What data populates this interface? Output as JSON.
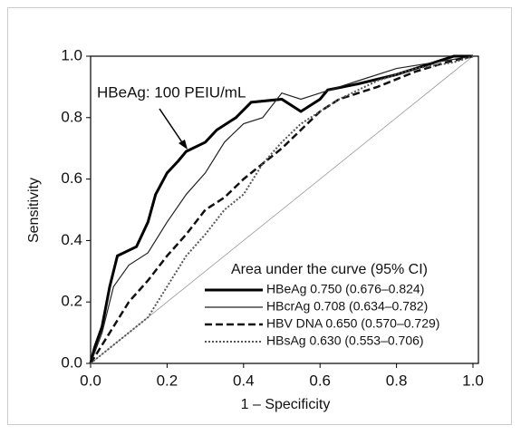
{
  "chart_data": {
    "type": "line",
    "xlabel": "1 – Specificity",
    "ylabel": "Sensitivity",
    "annotation": "HBeAg: 100 PEIU/mL",
    "legend_title": "Area under the curve (95% CI)",
    "xlim": [
      0,
      1
    ],
    "ylim": [
      0,
      1
    ],
    "xticks": [
      {
        "value": 0,
        "label": "0.0"
      },
      0.2,
      0.4,
      0.6,
      0.8,
      {
        "value": 1,
        "label": "1.0"
      }
    ],
    "yticks": [
      {
        "value": 0,
        "label": "0.0"
      },
      0.2,
      0.4,
      0.6,
      0.8,
      {
        "value": 1,
        "label": "1.0"
      }
    ],
    "series": [
      {
        "name": "HBeAg 0.750 (0.676–0.824)",
        "color": "#000000",
        "style": "solid",
        "width": 3,
        "x": [
          0,
          0.01,
          0.03,
          0.05,
          0.07,
          0.12,
          0.15,
          0.17,
          0.2,
          0.23,
          0.25,
          0.3,
          0.33,
          0.38,
          0.42,
          0.5,
          0.55,
          0.6,
          0.62,
          0.7,
          0.8,
          0.9,
          0.95,
          1
        ],
        "values": [
          0,
          0.05,
          0.12,
          0.25,
          0.35,
          0.38,
          0.46,
          0.55,
          0.62,
          0.66,
          0.69,
          0.72,
          0.76,
          0.8,
          0.85,
          0.86,
          0.82,
          0.86,
          0.89,
          0.91,
          0.94,
          0.98,
          1,
          1
        ]
      },
      {
        "name": "HBcrAg 0.708 (0.634–0.782)",
        "color": "#222222",
        "style": "solid",
        "width": 1.2,
        "x": [
          0,
          0.03,
          0.06,
          0.1,
          0.15,
          0.2,
          0.25,
          0.3,
          0.35,
          0.4,
          0.45,
          0.5,
          0.55,
          0.6,
          0.7,
          0.8,
          0.9,
          1
        ],
        "values": [
          0,
          0.1,
          0.25,
          0.32,
          0.36,
          0.46,
          0.55,
          0.62,
          0.72,
          0.78,
          0.8,
          0.88,
          0.86,
          0.88,
          0.92,
          0.96,
          0.98,
          1
        ]
      },
      {
        "name": "HBV DNA 0.650 (0.570–0.729)",
        "color": "#111111",
        "style": "dashed",
        "width": 2.5,
        "x": [
          0,
          0.05,
          0.1,
          0.15,
          0.2,
          0.25,
          0.3,
          0.35,
          0.4,
          0.45,
          0.5,
          0.55,
          0.6,
          0.65,
          0.75,
          0.85,
          0.93,
          1
        ],
        "values": [
          0,
          0.1,
          0.2,
          0.27,
          0.35,
          0.42,
          0.5,
          0.54,
          0.6,
          0.65,
          0.7,
          0.76,
          0.82,
          0.86,
          0.9,
          0.95,
          0.98,
          1
        ]
      },
      {
        "name": "HBsAg 0.630 (0.553–0.706)",
        "color": "#555555",
        "style": "dotted",
        "width": 2,
        "x": [
          0,
          0.05,
          0.1,
          0.15,
          0.2,
          0.25,
          0.3,
          0.35,
          0.4,
          0.45,
          0.5,
          0.55,
          0.6,
          0.65,
          0.75,
          0.85,
          0.95,
          1
        ],
        "values": [
          0,
          0.05,
          0.1,
          0.15,
          0.25,
          0.35,
          0.42,
          0.5,
          0.55,
          0.65,
          0.72,
          0.78,
          0.82,
          0.86,
          0.92,
          0.96,
          0.98,
          1
        ]
      }
    ]
  }
}
